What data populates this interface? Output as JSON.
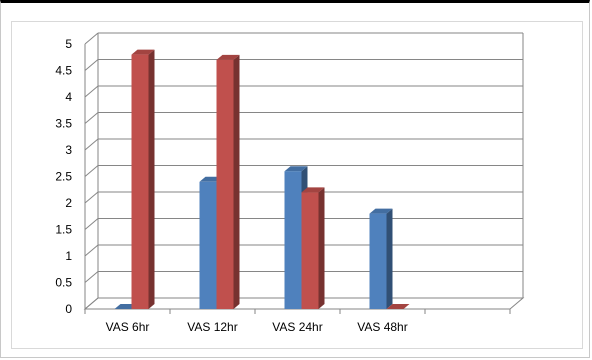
{
  "chart_data": {
    "type": "bar",
    "style": "3d-clustered-column",
    "categories": [
      "VAS 6hr",
      "VAS 12hr",
      "VAS 24hr",
      "VAS 48hr"
    ],
    "series": [
      {
        "values": [
          0.0,
          2.4,
          2.6,
          1.8
        ],
        "color": "#4f81bd"
      },
      {
        "values": [
          4.8,
          4.7,
          2.2,
          0.0
        ],
        "color": "#c0504d"
      }
    ],
    "ylim": [
      0,
      5
    ],
    "yticks": [
      "0",
      "0.5",
      "1",
      "1.5",
      "2",
      "2.5",
      "3",
      "3.5",
      "4",
      "4.5",
      "5"
    ],
    "grid": true,
    "legend": "none",
    "title": "",
    "xlabel": "",
    "ylabel": ""
  }
}
